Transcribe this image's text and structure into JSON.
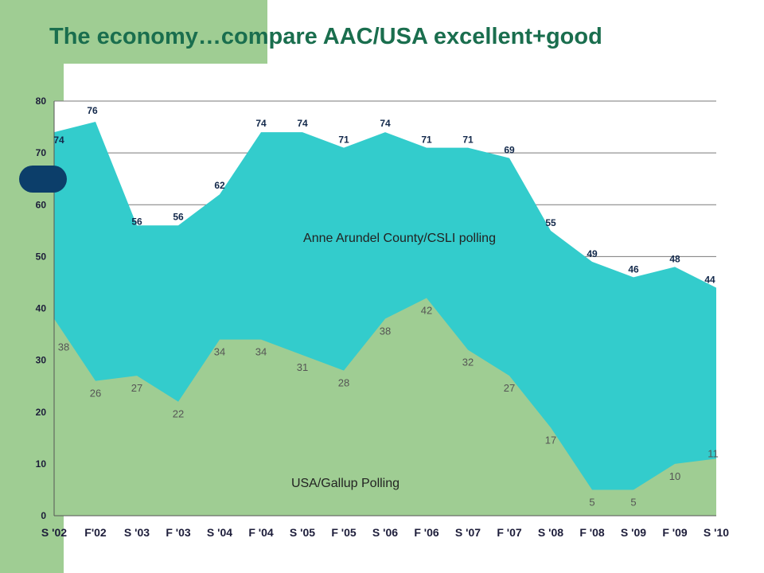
{
  "slide": {
    "title": "The economy…compare AAC/USA excellent+good"
  },
  "colors": {
    "band": "#9fcd93",
    "top_area": "#33cccc",
    "bottom_area": "#9fcd93",
    "title": "#1a6e4e",
    "pill": "#0c3e6a"
  },
  "chart_data": {
    "type": "area",
    "x": [
      "S '02",
      "F'02",
      "S '03",
      "F '03",
      "S '04",
      "F '04",
      "S '05",
      "F '05",
      "S '06",
      "F '06",
      "S '07",
      "F '07",
      "S '08",
      "F '08",
      "S '09",
      "F '09",
      "S '10"
    ],
    "ylim": [
      0,
      80
    ],
    "yticks": [
      0,
      10,
      20,
      30,
      40,
      50,
      60,
      70,
      80
    ],
    "grid": true,
    "series": [
      {
        "name": "Anne Arundel County/CSLI polling",
        "color": "#33cccc",
        "values": [
          74,
          76,
          56,
          56,
          62,
          74,
          74,
          71,
          74,
          71,
          71,
          69,
          55,
          49,
          46,
          48,
          44
        ]
      },
      {
        "name": "USA/Gallup Polling",
        "color": "#9fcd93",
        "values": [
          38,
          26,
          27,
          22,
          34,
          34,
          31,
          28,
          38,
          42,
          32,
          27,
          17,
          5,
          5,
          10,
          11
        ]
      }
    ]
  }
}
